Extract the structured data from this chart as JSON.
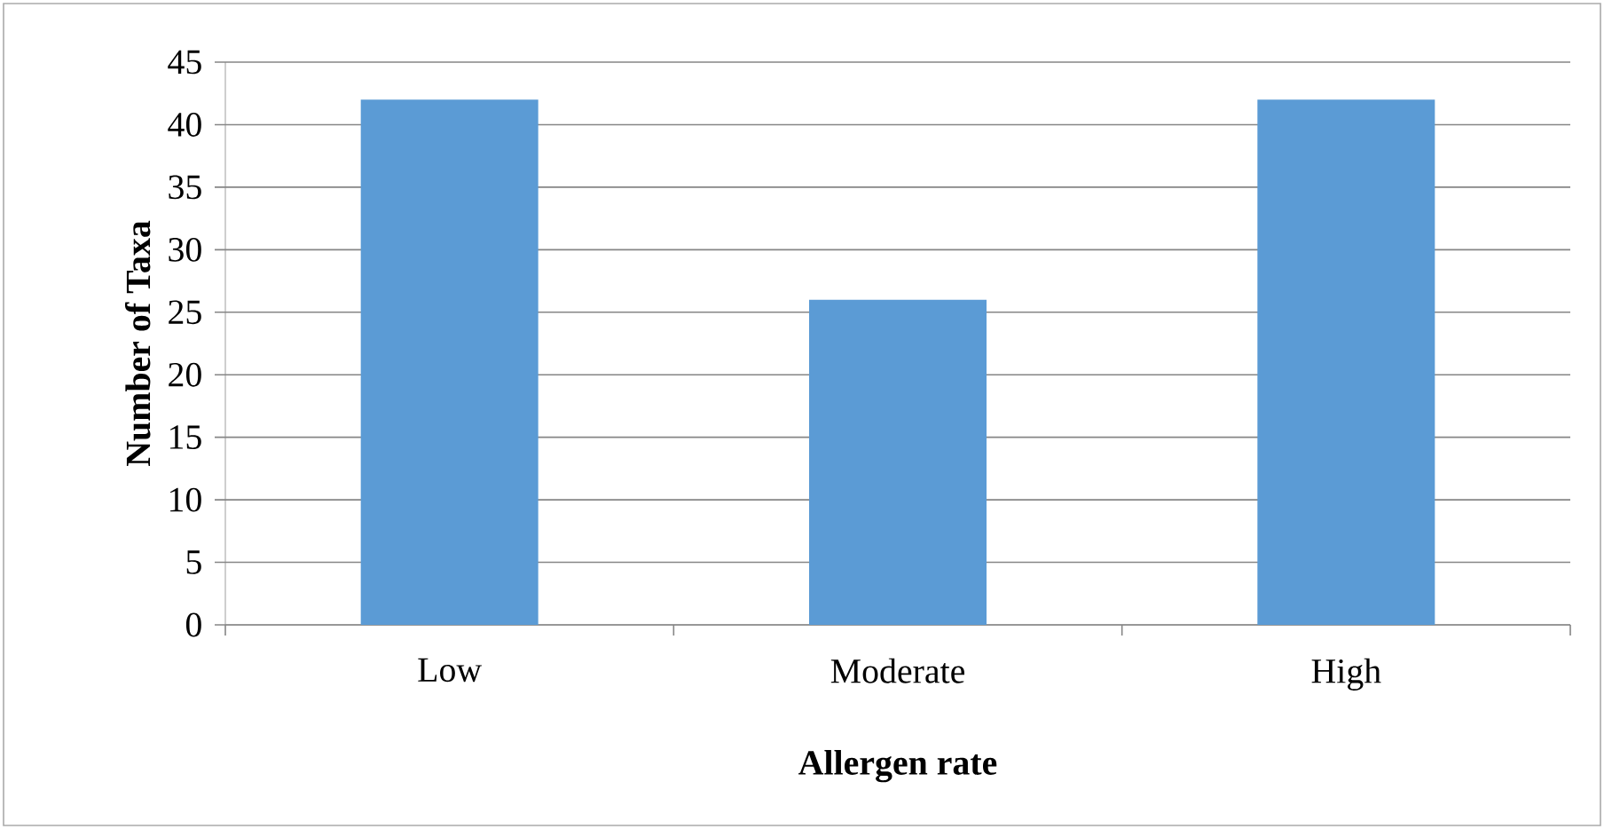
{
  "chart_data": {
    "type": "bar",
    "xlabel": "Allergen rate",
    "ylabel": "Number of Taxa",
    "categories": [
      "Low",
      "Moderate",
      "High"
    ],
    "values": [
      42,
      26,
      42
    ],
    "color": "#5b9bd5",
    "ylim": [
      0,
      45
    ],
    "yticks": [
      0,
      5,
      10,
      15,
      20,
      25,
      30,
      35,
      40,
      45
    ],
    "grid": "y"
  }
}
